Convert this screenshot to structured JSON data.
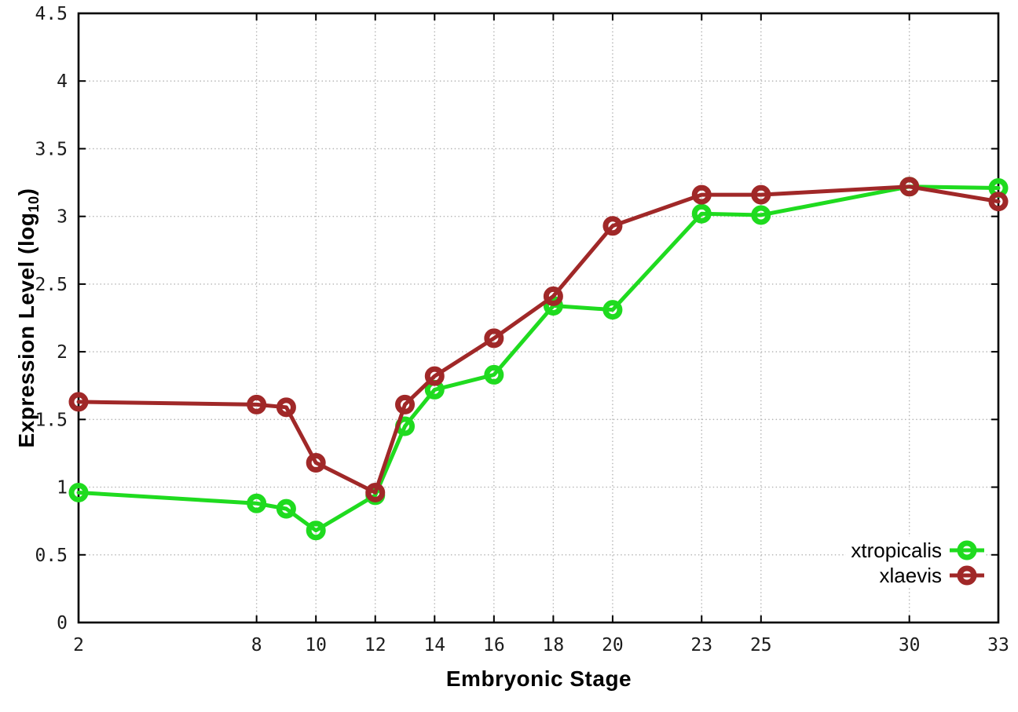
{
  "chart_data": {
    "type": "line",
    "title": "",
    "xlabel": "Embryonic Stage",
    "ylabel": "Expression Level (log10)",
    "ylabel_rich": {
      "pre": "Expression Level (log",
      "sub": "10",
      "post": ")"
    },
    "xlim": [
      2,
      33
    ],
    "ylim": [
      0,
      4.5
    ],
    "x_ticks": [
      2,
      8,
      10,
      12,
      14,
      16,
      18,
      20,
      23,
      25,
      30,
      33
    ],
    "y_ticks": [
      0,
      0.5,
      1,
      1.5,
      2,
      2.5,
      3,
      3.5,
      4,
      4.5
    ],
    "grid": "dotted",
    "legend_position": "bottom-right",
    "x": [
      2,
      8,
      9,
      10,
      12,
      13,
      14,
      16,
      18,
      20,
      23,
      25,
      30,
      33
    ],
    "series": [
      {
        "name": "xtropicalis",
        "color": "#1fdb1f",
        "marker": "open-circle",
        "values": [
          0.96,
          0.88,
          0.84,
          0.68,
          0.94,
          1.45,
          1.72,
          1.83,
          2.34,
          2.31,
          3.02,
          3.01,
          3.22,
          3.21
        ]
      },
      {
        "name": "xlaevis",
        "color": "#a02828",
        "marker": "open-circle",
        "values": [
          1.63,
          1.61,
          1.59,
          1.18,
          0.96,
          1.61,
          1.82,
          2.1,
          2.41,
          2.93,
          3.16,
          3.16,
          3.22,
          3.11
        ]
      }
    ]
  }
}
